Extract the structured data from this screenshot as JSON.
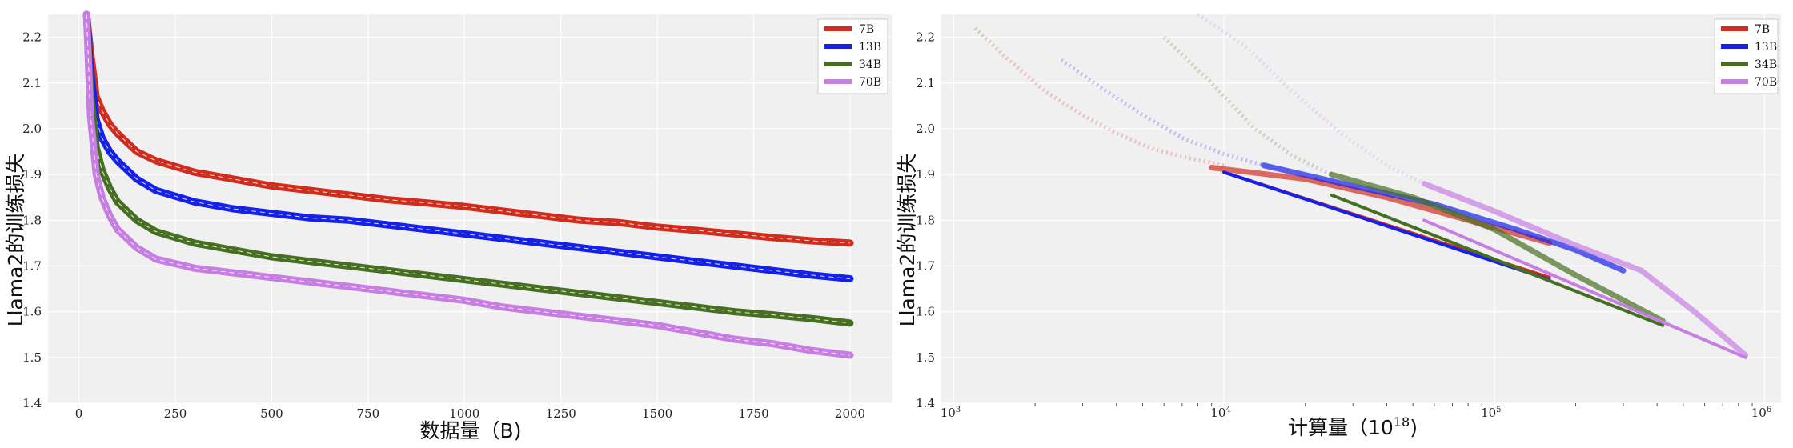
{
  "chart_data": [
    {
      "type": "line",
      "xlabel": "数据量（B)",
      "ylabel": "Llama2的训练损失",
      "xlim": [
        -80,
        2110
      ],
      "ylim": [
        1.4,
        2.25
      ],
      "x_ticks": [
        0,
        250,
        500,
        750,
        1000,
        1250,
        1500,
        1750,
        2000
      ],
      "x_tick_labels": [
        "0",
        "250",
        "500",
        "750",
        "1000",
        "1250",
        "1500",
        "1750",
        "2000"
      ],
      "y_ticks": [
        1.4,
        1.5,
        1.6,
        1.7,
        1.8,
        1.9,
        2.0,
        2.1,
        2.2
      ],
      "y_tick_labels": [
        "1.4",
        "1.5",
        "1.6",
        "1.7",
        "1.8",
        "1.9",
        "2.0",
        "2.1",
        "2.2"
      ],
      "grid": true,
      "legend_position": "top-right",
      "x": [
        20,
        30,
        45,
        60,
        80,
        100,
        150,
        200,
        300,
        400,
        500,
        600,
        700,
        800,
        900,
        1000,
        1100,
        1200,
        1300,
        1400,
        1500,
        1600,
        1700,
        1800,
        1900,
        2000
      ],
      "series": [
        {
          "name": "7B",
          "color": "#d12d1f",
          "values": [
            2.25,
            2.17,
            2.07,
            2.04,
            2.01,
            1.99,
            1.95,
            1.93,
            1.905,
            1.89,
            1.875,
            1.865,
            1.855,
            1.845,
            1.838,
            1.83,
            1.82,
            1.81,
            1.8,
            1.795,
            1.785,
            1.778,
            1.77,
            1.762,
            1.755,
            1.75
          ]
        },
        {
          "name": "13B",
          "color": "#1520e8",
          "values": [
            2.25,
            2.13,
            2.02,
            1.98,
            1.95,
            1.93,
            1.89,
            1.865,
            1.84,
            1.825,
            1.815,
            1.805,
            1.8,
            1.79,
            1.78,
            1.77,
            1.76,
            1.75,
            1.74,
            1.73,
            1.72,
            1.71,
            1.7,
            1.69,
            1.68,
            1.672
          ]
        },
        {
          "name": "34B",
          "color": "#466f22",
          "values": [
            2.25,
            2.08,
            1.96,
            1.91,
            1.87,
            1.84,
            1.8,
            1.775,
            1.75,
            1.735,
            1.72,
            1.71,
            1.7,
            1.69,
            1.68,
            1.67,
            1.66,
            1.65,
            1.64,
            1.63,
            1.62,
            1.61,
            1.6,
            1.593,
            1.585,
            1.575
          ]
        },
        {
          "name": "70B",
          "color": "#c77ee2",
          "values": [
            2.25,
            2.03,
            1.9,
            1.85,
            1.81,
            1.78,
            1.74,
            1.715,
            1.695,
            1.685,
            1.675,
            1.665,
            1.655,
            1.645,
            1.635,
            1.625,
            1.61,
            1.6,
            1.59,
            1.58,
            1.57,
            1.555,
            1.54,
            1.53,
            1.515,
            1.505
          ]
        }
      ]
    },
    {
      "type": "line",
      "xlabel": "计算量（10^18)",
      "x_label_main": "计算量（10",
      "x_label_sup": "18",
      "x_label_tail": ")",
      "ylabel": "Llama2的训练损失",
      "x_scale": "log",
      "xlim": [
        900,
        1150000
      ],
      "ylim": [
        1.4,
        2.25
      ],
      "x_ticks": [
        1000,
        10000,
        100000,
        1000000
      ],
      "x_tick_base": "10",
      "x_tick_exponents": [
        "3",
        "4",
        "5",
        "6"
      ],
      "y_ticks": [
        1.4,
        1.5,
        1.6,
        1.7,
        1.8,
        1.9,
        2.0,
        2.1,
        2.2
      ],
      "y_tick_labels": [
        "1.4",
        "1.5",
        "1.6",
        "1.7",
        "1.8",
        "1.9",
        "2.0",
        "2.1",
        "2.2"
      ],
      "grid": true,
      "legend_position": "top-right",
      "series": [
        {
          "name": "7B",
          "color": "#d12d1f",
          "faint": {
            "x": [
              1200,
              1600,
              2200,
              3000,
              4000,
              5500,
              7500,
              10000
            ],
            "y": [
              2.22,
              2.15,
              2.08,
              2.03,
              1.99,
              1.955,
              1.935,
              1.92
            ]
          },
          "solid": {
            "x": [
              9000,
              20000,
              40000,
              80000,
              160000
            ],
            "y": [
              1.915,
              1.89,
              1.85,
              1.8,
              1.75
            ]
          },
          "fit": {
            "x": [
              10000,
              160000
            ],
            "y": [
              1.905,
              1.675
            ]
          }
        },
        {
          "name": "13B",
          "color": "#1520e8",
          "faint": {
            "x": [
              2500,
              3500,
              5000,
              7000,
              10000,
              14000
            ],
            "y": [
              2.15,
              2.09,
              2.03,
              1.98,
              1.945,
              1.92
            ]
          },
          "solid": {
            "x": [
              14000,
              30000,
              60000,
              120000,
              200000,
              300000
            ],
            "y": [
              1.92,
              1.875,
              1.835,
              1.78,
              1.735,
              1.69
            ]
          },
          "fit": {
            "x": [
              10000,
              160000
            ],
            "y": [
              1.905,
              1.67
            ]
          }
        },
        {
          "name": "34B",
          "color": "#466f22",
          "faint": {
            "x": [
              6000,
              9000,
              13000,
              18000,
              25000
            ],
            "y": [
              2.2,
              2.1,
              2.0,
              1.94,
              1.9
            ]
          },
          "solid": {
            "x": [
              25000,
              50000,
              100000,
              200000,
              420000
            ],
            "y": [
              1.9,
              1.85,
              1.78,
              1.68,
              1.58
            ]
          },
          "fit": {
            "x": [
              25000,
              420000
            ],
            "y": [
              1.855,
              1.57
            ]
          }
        },
        {
          "name": "70B",
          "color": "#c77ee2",
          "faint": {
            "x": [
              8000,
              12000,
              18000,
              27000,
              40000,
              55000
            ],
            "y": [
              2.25,
              2.18,
              2.08,
              1.99,
              1.92,
              1.88
            ]
          },
          "solid": {
            "x": [
              55000,
              100000,
              200000,
              350000,
              550000,
              850000
            ],
            "y": [
              1.88,
              1.82,
              1.745,
              1.69,
              1.6,
              1.505
            ]
          },
          "fit": {
            "x": [
              55000,
              850000
            ],
            "y": [
              1.8,
              1.5
            ]
          }
        }
      ]
    }
  ]
}
